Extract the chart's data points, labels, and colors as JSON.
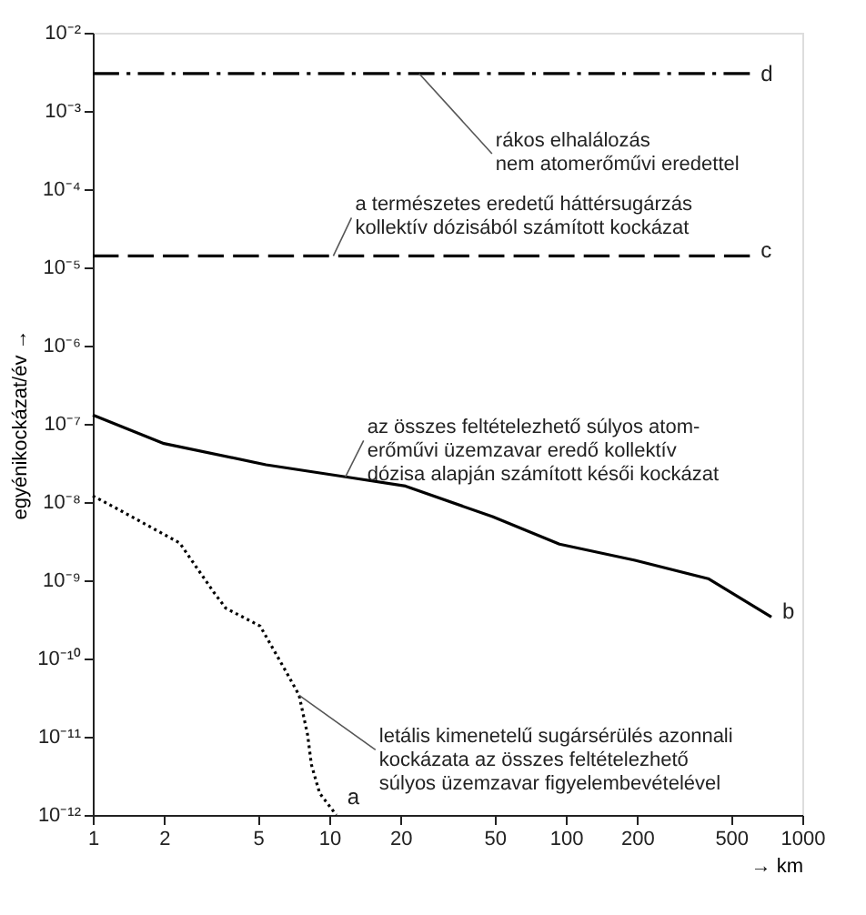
{
  "chart_data": {
    "type": "line",
    "xlabel": "→ km",
    "ylabel": "egyénikockázat/év →",
    "log": "xy",
    "grid": false,
    "legend": false,
    "marker": "none",
    "xlim": [
      1,
      1000
    ],
    "xticks": [
      1,
      2,
      5,
      10,
      20,
      50,
      100,
      200,
      500,
      1000
    ],
    "ylim": [
      1e-12,
      0.01
    ],
    "yticks": [
      {
        "value": 1e-12,
        "label": "10⁻¹²"
      },
      {
        "value": 1e-11,
        "label": "10⁻¹¹"
      },
      {
        "value": 1e-10,
        "label": "10⁻¹⁰"
      },
      {
        "value": 1e-09,
        "label": "10⁻⁹"
      },
      {
        "value": 1e-08,
        "label": "10⁻⁸"
      },
      {
        "value": 1e-07,
        "label": "10⁻⁷"
      },
      {
        "value": 1e-06,
        "label": "10⁻⁶"
      },
      {
        "value": 1e-05,
        "label": "10⁻⁵"
      },
      {
        "value": 0.0001,
        "label": "10⁻⁴"
      },
      {
        "value": 0.001,
        "label": "10⁻³"
      },
      {
        "value": 0.01,
        "label": "10⁻²"
      }
    ],
    "series": [
      {
        "name": "d",
        "color": "#000000",
        "line_style": "dashdot",
        "x": [
          1,
          600
        ],
        "values": [
          0.003,
          0.003
        ]
      },
      {
        "name": "c",
        "color": "#000000",
        "line_style": "dashed",
        "x": [
          1,
          600
        ],
        "values": [
          1.4e-05,
          1.4e-05
        ]
      },
      {
        "name": "b",
        "color": "#000000",
        "line_style": "solid",
        "x": [
          1,
          2,
          5.4,
          11.7,
          21,
          49,
          94,
          196,
          400,
          740
        ],
        "values": [
          1.3e-07,
          5.6e-08,
          3e-08,
          2.1e-08,
          1.6e-08,
          6.5e-09,
          2.9e-09,
          1.8e-09,
          1.05e-09,
          3.4e-10
        ]
      },
      {
        "name": "a",
        "color": "#000000",
        "line_style": "dotted",
        "x": [
          1,
          1.26,
          2.33,
          3.25,
          3.65,
          5.1,
          6.6,
          7.45,
          8.1,
          8.4,
          9.1,
          10.7
        ],
        "values": [
          1.2e-08,
          8.3e-09,
          3e-09,
          7e-10,
          4.4e-10,
          2.6e-10,
          6.6e-11,
          3.4e-11,
          1.05e-11,
          4.4e-12,
          1.9e-12,
          1e-12
        ]
      }
    ],
    "annotations": [
      {
        "text": "rákos elhalálozás\nnem atomerőművi eredettel",
        "x": 24,
        "y": 0.003
      },
      {
        "text": "a természetes eredetű háttérsugárzás\nkollektív dózisából számított kockázat",
        "x": 10.4,
        "y": 1.4e-05
      },
      {
        "text": "az összes feltételezhető súlyos atom-\nerőművi üzemzavar eredő kollektív\ndózisa alapján számított késői kockázat",
        "x": 11.7,
        "y": 2.1e-08
      },
      {
        "text": "letális kimenetelű sugársérülés azonnali\nkockázata az összes feltételezhető\nsúlyos üzemzavar figyelembevételével",
        "x": 7.45,
        "y": 3.4e-11
      }
    ]
  }
}
